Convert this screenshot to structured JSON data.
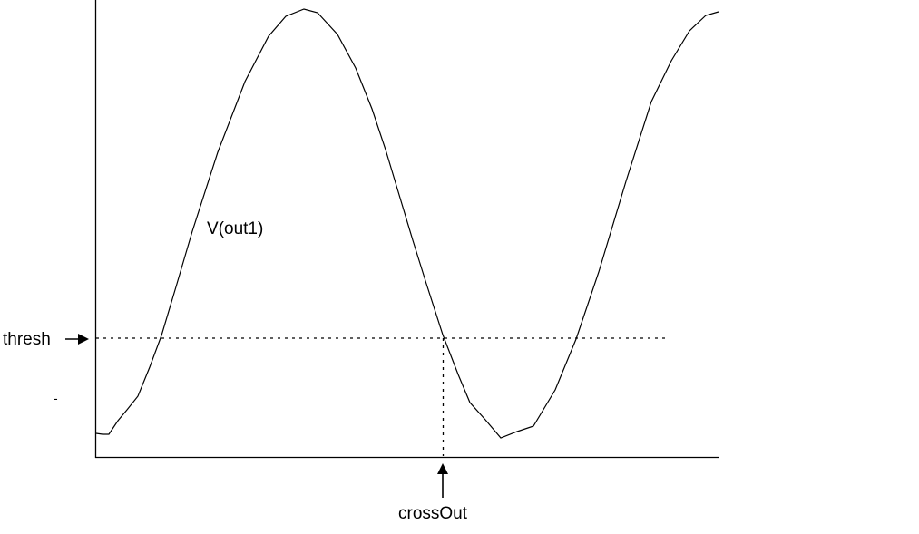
{
  "signal_label": "V(out1)",
  "threshold_label": "thresh",
  "crossing_label": "crossOut",
  "stray_mark": "-",
  "colors": {
    "line": "#000000",
    "background": "#ffffff"
  },
  "threshold_line_style": "dotted",
  "crossing_marker_style": "dotted",
  "arrow_icons": [
    "right-arrow-icon",
    "up-arrow-icon"
  ]
}
